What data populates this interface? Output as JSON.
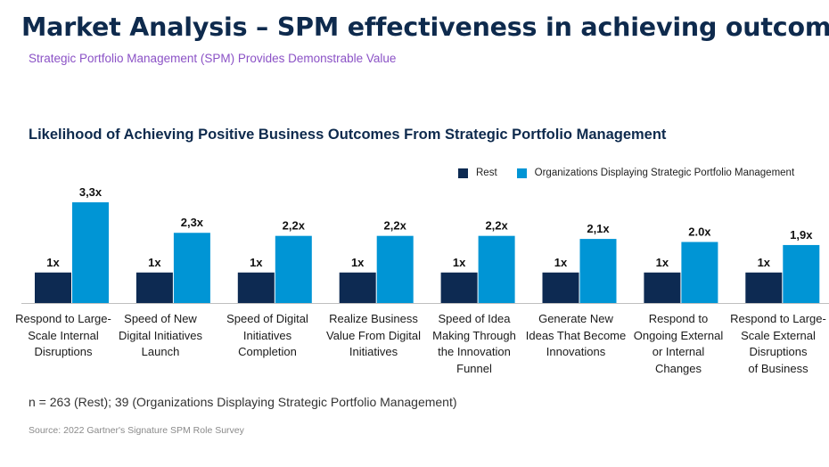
{
  "header": {
    "title": "Market Analysis – SPM effectiveness in achieving outcomes",
    "subtitle": "Strategic Portfolio Management (SPM) Provides Demonstrable Value"
  },
  "chart_data": {
    "type": "bar",
    "title": "Likelihood of Achieving Positive Business Outcomes From Strategic Portfolio Management",
    "categories": [
      "Respond to Large-Scale Internal Disruptions",
      "Speed of New Digital Initiatives Launch",
      "Speed of Digital Initiatives Completion",
      "Realize Business Value From Digital Initiatives",
      "Speed of Idea Making Through the Innovation Funnel",
      "Generate New Ideas That Become Innovations",
      "Respond to Ongoing External or Internal Changes",
      "Respond to Large-Scale External Disruptions of Business"
    ],
    "category_lines": [
      [
        "Respond to Large-",
        "Scale Internal",
        "Disruptions"
      ],
      [
        "Speed of New",
        "Digital Initiatives",
        "Launch"
      ],
      [
        "Speed of Digital",
        "Initiatives",
        "Completion"
      ],
      [
        "Realize Business",
        "Value From Digital",
        "Initiatives"
      ],
      [
        "Speed of Idea",
        "Making Through",
        "the Innovation",
        "Funnel"
      ],
      [
        "Generate New",
        "Ideas That Become",
        "Innovations"
      ],
      [
        "Respond to",
        "Ongoing External",
        "or Internal",
        "Changes"
      ],
      [
        "Respond to Large-",
        "Scale External",
        "Disruptions",
        "of Business"
      ]
    ],
    "series": [
      {
        "name": "Rest",
        "color": "#0d2a52",
        "values": [
          1,
          1,
          1,
          1,
          1,
          1,
          1,
          1
        ],
        "labels": [
          "1x",
          "1x",
          "1x",
          "1x",
          "1x",
          "1x",
          "1x",
          "1x"
        ]
      },
      {
        "name": "Organizations Displaying Strategic Portfolio Management",
        "color": "#0095d5",
        "values": [
          3.3,
          2.3,
          2.2,
          2.2,
          2.2,
          2.1,
          2.0,
          1.9
        ],
        "labels": [
          "3,3x",
          "2,3x",
          "2,2x",
          "2,2x",
          "2,2x",
          "2,1x",
          "2.0x",
          "1,9x"
        ]
      }
    ],
    "ylim": [
      0,
      3.3
    ],
    "legend_position": "top-right",
    "grid": false
  },
  "footer": {
    "note": "n = 263 (Rest); 39 (Organizations Displaying Strategic Portfolio Management)",
    "source": "Source: 2022 Gartner's Signature SPM Role Survey"
  }
}
